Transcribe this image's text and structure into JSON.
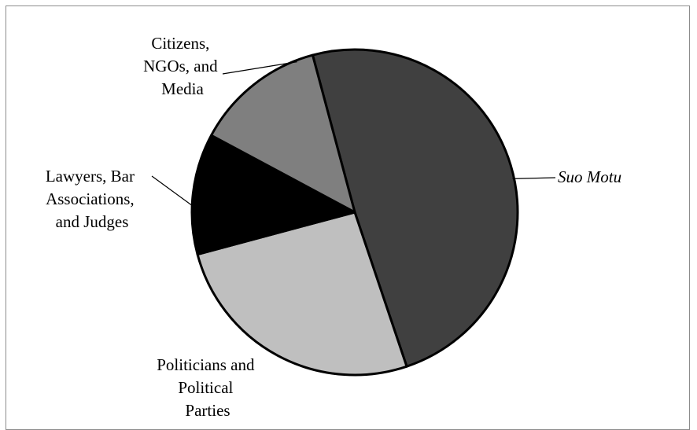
{
  "chart_data": {
    "type": "pie",
    "title": "",
    "slices": [
      {
        "label": "Suo Motu",
        "value": 49,
        "color": "#404040",
        "italic": true
      },
      {
        "label": "Politicians and Political Parties",
        "value": 26,
        "color": "#bfbfbf"
      },
      {
        "label": "Lawyers, Bar Associations, and Judges",
        "value": 12,
        "color": "#000000"
      },
      {
        "label": "Citizens, NGOs, and Media",
        "value": 13,
        "color": "#7f7f7f"
      }
    ],
    "labels_lines": [
      [
        "Suo Motu"
      ],
      [
        "Politicians and",
        "Political",
        "Parties"
      ],
      [
        "Lawyers, Bar",
        "Associations,",
        "and Judges"
      ],
      [
        "Citizens,",
        "NGOs, and",
        "Media"
      ]
    ],
    "legend": "none",
    "slice_border_color": "#000000"
  }
}
